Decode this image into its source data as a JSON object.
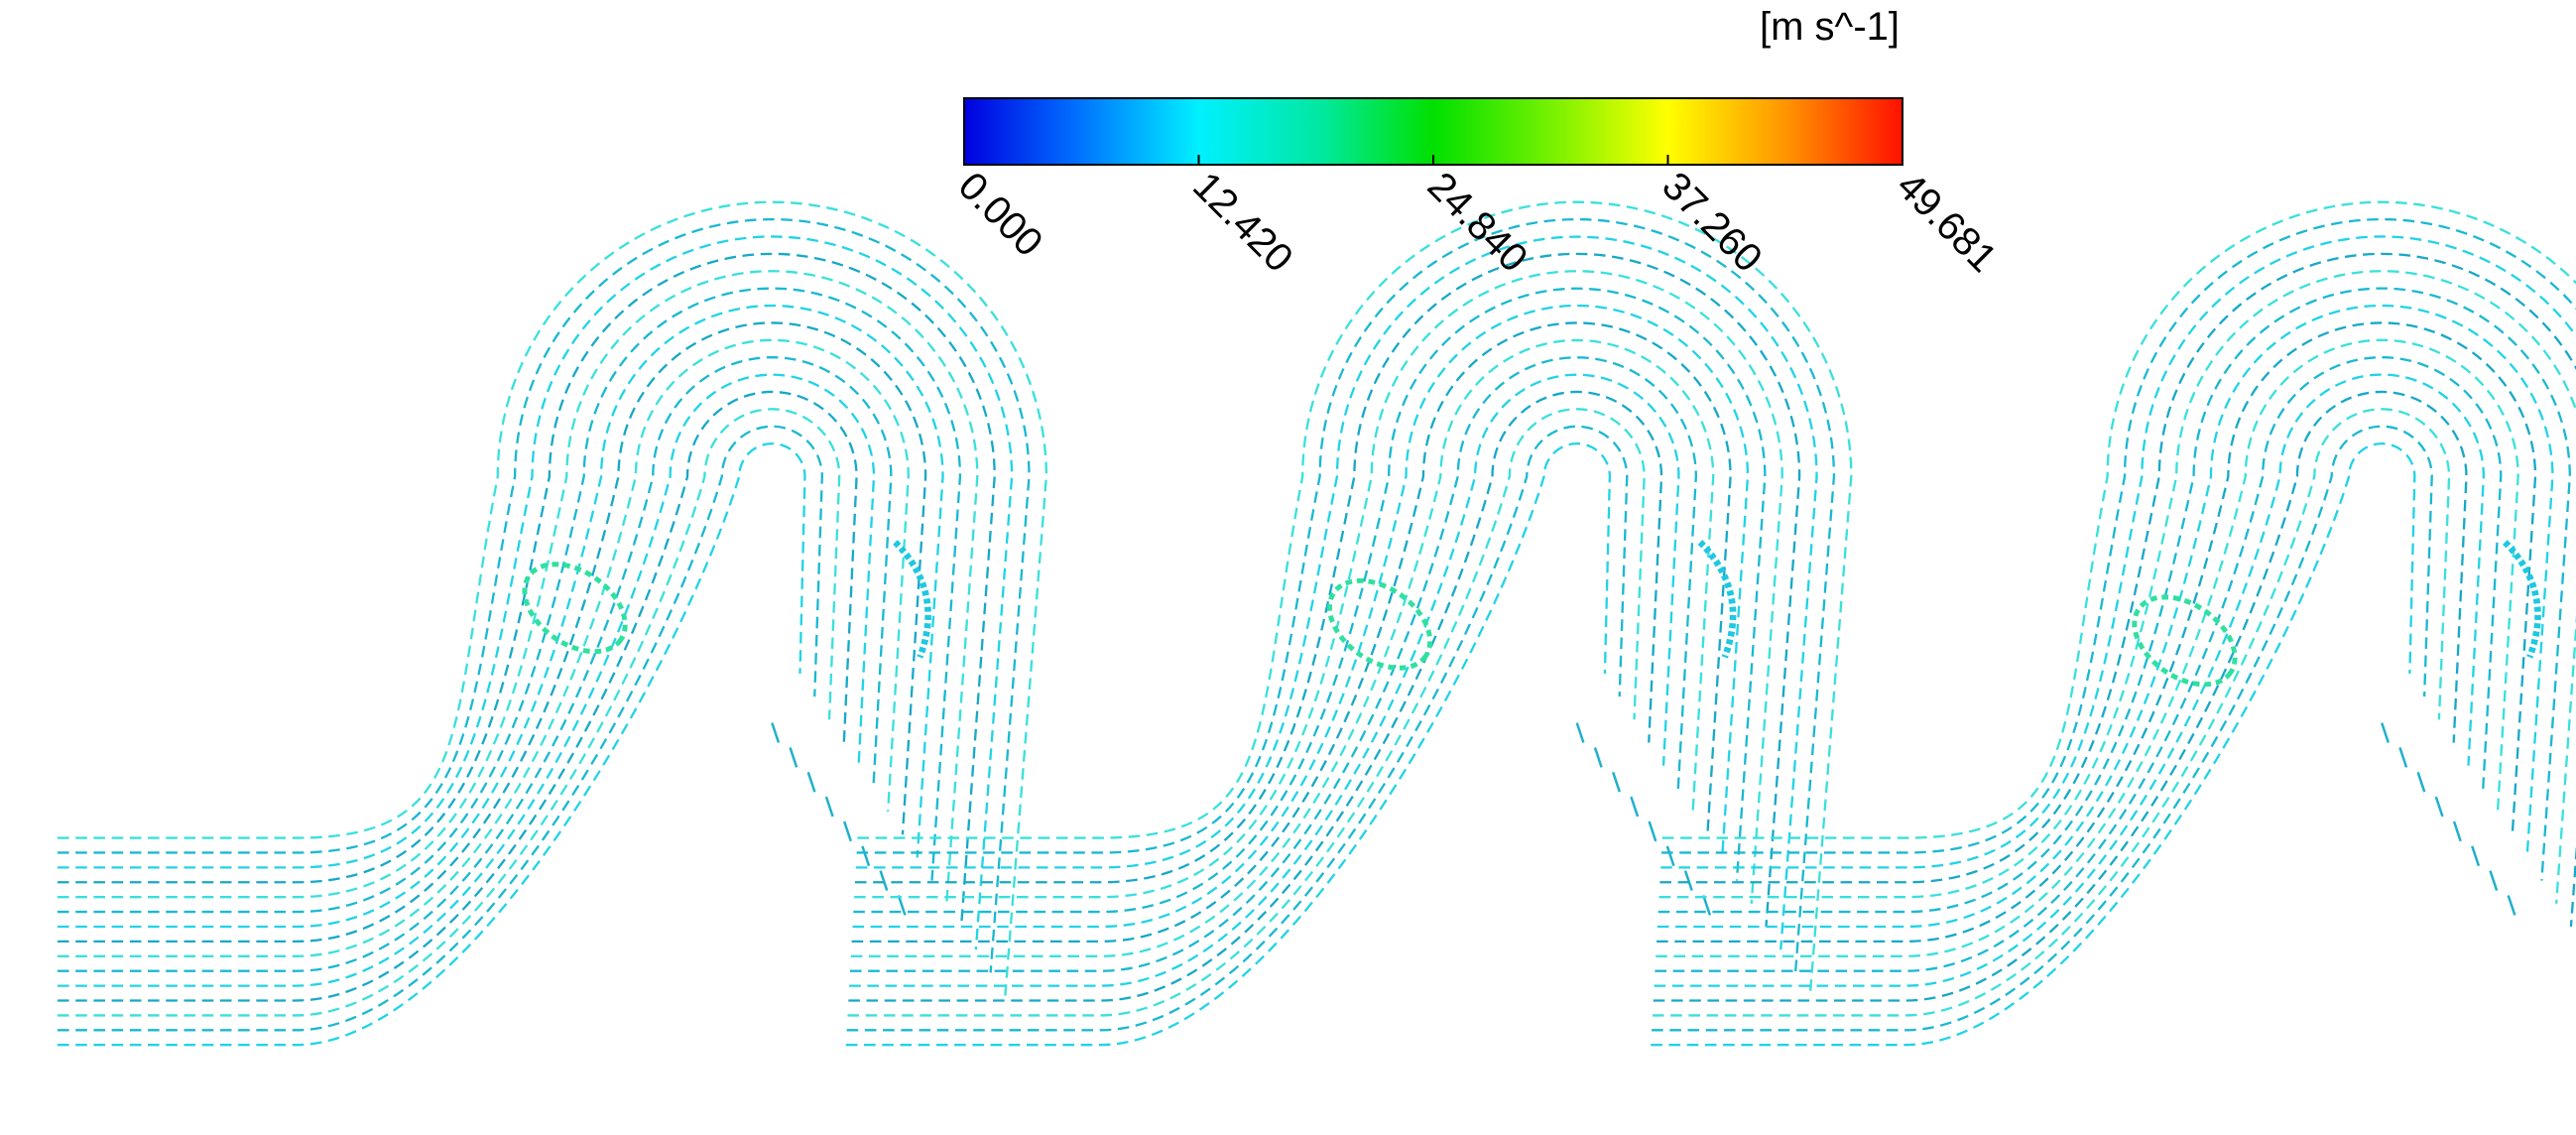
{
  "colorbar": {
    "unit": "[m s^-1]",
    "lim": [
      0,
      49.681
    ],
    "ticks": [
      {
        "value": 0,
        "label": "0.000"
      },
      {
        "value": 12.42,
        "label": "12.420"
      },
      {
        "value": 24.84,
        "label": "24.840"
      },
      {
        "value": 37.26,
        "label": "37.260"
      },
      {
        "value": 49.681,
        "label": "49.681"
      }
    ]
  }
}
